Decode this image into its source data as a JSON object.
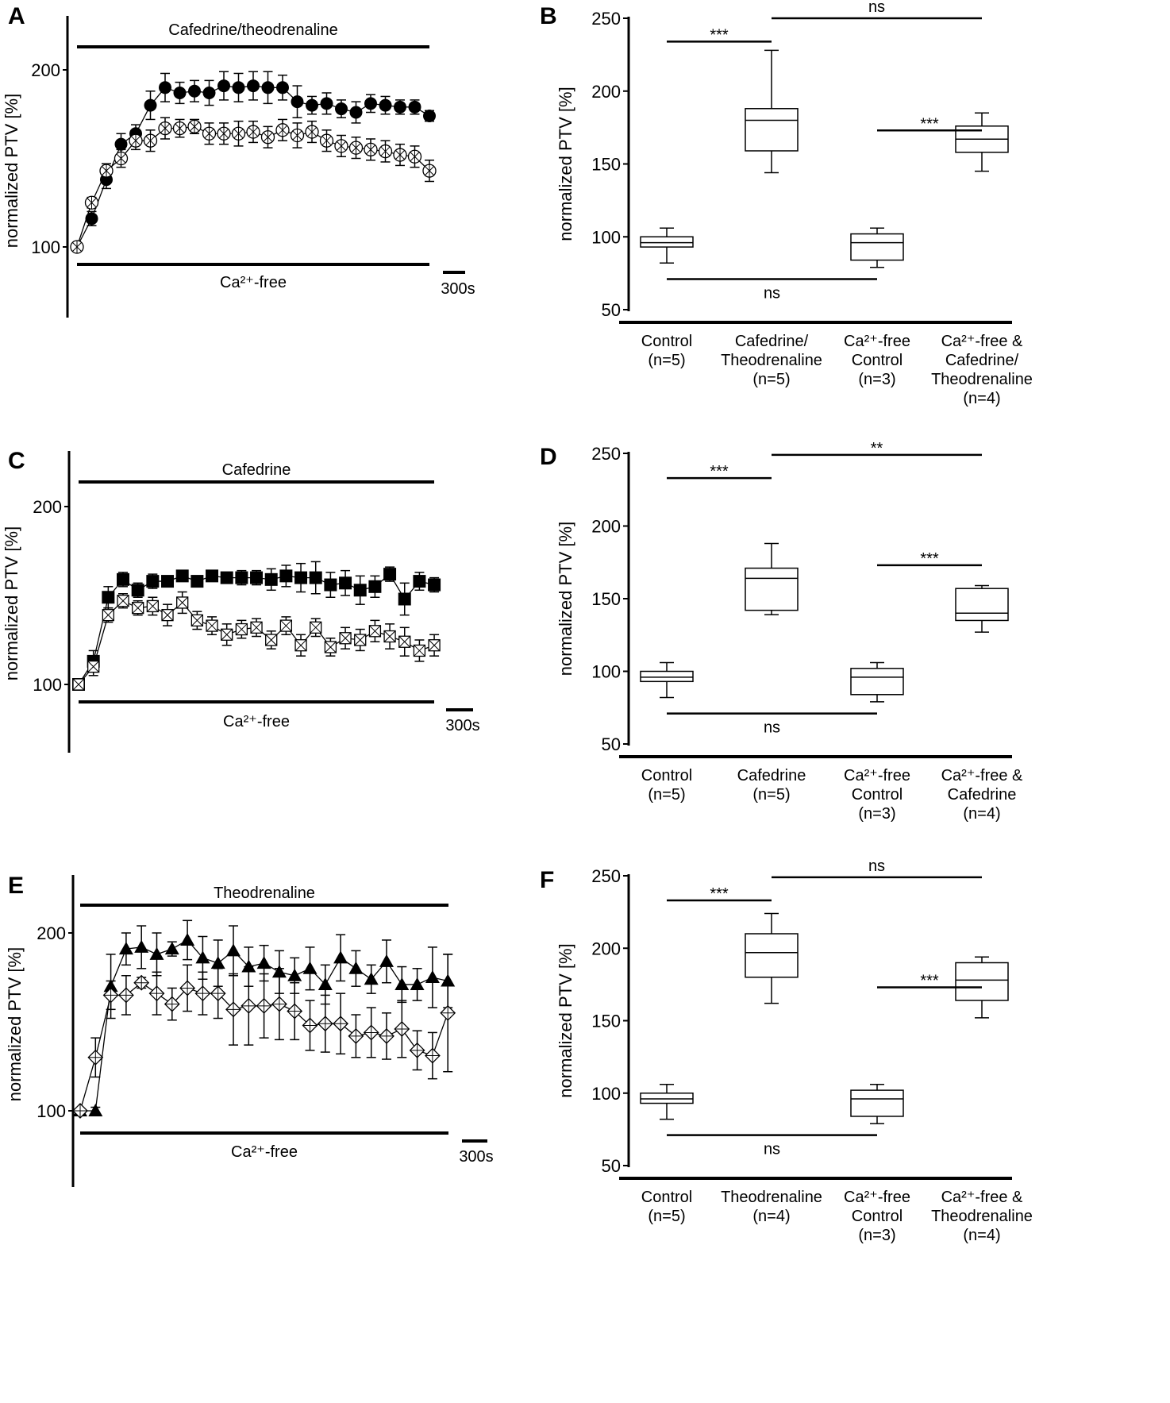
{
  "chart_data": [
    {
      "panel": "A",
      "type": "line",
      "ylabel": "normalized PTV [%]",
      "yticks": [
        100,
        200
      ],
      "top_bar_label": "Cafedrine/theodrenaline",
      "bottom_bar_label": "Ca²⁺-free",
      "scale_label": "300s",
      "series": [
        {
          "marker": "filled-circle",
          "values": [
            100,
            116,
            138,
            158,
            164,
            180,
            190,
            187,
            188,
            187,
            191,
            190,
            191,
            190,
            190,
            182,
            180,
            181,
            178,
            176,
            181,
            180,
            179,
            179,
            174
          ],
          "err": [
            0,
            4,
            5,
            6,
            5,
            8,
            8,
            6,
            6,
            7,
            8,
            8,
            8,
            9,
            7,
            9,
            5,
            6,
            5,
            6,
            5,
            5,
            4,
            4,
            3
          ]
        },
        {
          "marker": "open-circle-cross",
          "values": [
            100,
            125,
            143,
            150,
            160,
            160,
            167,
            167,
            168,
            164,
            164,
            164,
            165,
            162,
            166,
            163,
            165,
            160,
            157,
            156,
            155,
            154,
            152,
            151,
            143
          ],
          "err": [
            0,
            3,
            4,
            5,
            5,
            6,
            6,
            5,
            4,
            6,
            6,
            7,
            6,
            6,
            6,
            7,
            6,
            6,
            6,
            6,
            6,
            6,
            6,
            6,
            6
          ]
        }
      ]
    },
    {
      "panel": "B",
      "type": "box",
      "ylabel": "normalized PTV [%]",
      "yticks": [
        50,
        100,
        150,
        200,
        250
      ],
      "ylim": [
        50,
        250
      ],
      "categories": [
        [
          "Control",
          "(n=5)"
        ],
        [
          "Cafedrine/",
          "Theodrenaline",
          "(n=5)"
        ],
        [
          "Ca²⁺-free",
          "Control",
          "(n=3)"
        ],
        [
          "Ca²⁺-free &",
          "Cafedrine/",
          "Theodrenaline",
          "(n=4)"
        ]
      ],
      "boxes": [
        {
          "min": 82,
          "q1": 93,
          "median": 96,
          "q3": 100,
          "max": 106
        },
        {
          "min": 144,
          "q1": 159,
          "median": 180,
          "q3": 188,
          "max": 228
        },
        {
          "min": 79,
          "q1": 84,
          "median": 96,
          "q3": 102,
          "max": 106
        },
        {
          "min": 145,
          "q1": 158,
          "median": 167,
          "q3": 176,
          "max": 185
        }
      ],
      "significance": [
        {
          "groups": [
            1,
            2
          ],
          "label": "***"
        },
        {
          "groups": [
            2,
            4
          ],
          "label": "ns"
        },
        {
          "groups": [
            3,
            4
          ],
          "label": "***"
        },
        {
          "groups": [
            1,
            3
          ],
          "label": "ns"
        }
      ]
    },
    {
      "panel": "C",
      "type": "line",
      "ylabel": "normalized PTV [%]",
      "yticks": [
        100,
        200
      ],
      "top_bar_label": "Cafedrine",
      "bottom_bar_label": "Ca²⁺-free",
      "scale_label": "300s",
      "series": [
        {
          "marker": "filled-square",
          "values": [
            100,
            113,
            149,
            159,
            153,
            158,
            158,
            161,
            158,
            161,
            160,
            160,
            160,
            159,
            161,
            160,
            160,
            156,
            157,
            153,
            155,
            162,
            148,
            158,
            156
          ],
          "err": [
            0,
            6,
            6,
            4,
            4,
            4,
            3,
            3,
            3,
            3,
            3,
            4,
            4,
            6,
            6,
            8,
            9,
            7,
            7,
            8,
            6,
            4,
            9,
            5,
            4
          ]
        },
        {
          "marker": "open-square-cross",
          "values": [
            100,
            110,
            139,
            147,
            143,
            144,
            139,
            146,
            136,
            133,
            128,
            131,
            132,
            125,
            133,
            122,
            132,
            121,
            126,
            125,
            130,
            127,
            124,
            119,
            122
          ],
          "err": [
            0,
            5,
            4,
            4,
            4,
            5,
            6,
            6,
            5,
            5,
            6,
            5,
            5,
            5,
            5,
            6,
            5,
            5,
            6,
            6,
            6,
            7,
            8,
            6,
            6
          ]
        }
      ]
    },
    {
      "panel": "D",
      "type": "box",
      "ylabel": "normalized PTV [%]",
      "yticks": [
        50,
        100,
        150,
        200,
        250
      ],
      "ylim": [
        50,
        250
      ],
      "categories": [
        [
          "Control",
          "(n=5)"
        ],
        [
          "Cafedrine",
          "(n=5)"
        ],
        [
          "Ca²⁺-free",
          "Control",
          "(n=3)"
        ],
        [
          "Ca²⁺-free &",
          "Cafedrine",
          "(n=4)"
        ]
      ],
      "boxes": [
        {
          "min": 82,
          "q1": 93,
          "median": 96,
          "q3": 100,
          "max": 106
        },
        {
          "min": 139,
          "q1": 142,
          "median": 164,
          "q3": 171,
          "max": 188
        },
        {
          "min": 79,
          "q1": 84,
          "median": 96,
          "q3": 102,
          "max": 106
        },
        {
          "min": 127,
          "q1": 135,
          "median": 140,
          "q3": 157,
          "max": 159
        }
      ],
      "significance": [
        {
          "groups": [
            1,
            2
          ],
          "label": "***"
        },
        {
          "groups": [
            2,
            4
          ],
          "label": "**"
        },
        {
          "groups": [
            3,
            4
          ],
          "label": "***"
        },
        {
          "groups": [
            1,
            3
          ],
          "label": "ns"
        }
      ]
    },
    {
      "panel": "E",
      "type": "line",
      "ylabel": "normalized PTV [%]",
      "yticks": [
        100,
        200
      ],
      "top_bar_label": "Theodrenaline",
      "bottom_bar_label": "Ca²⁺-free",
      "scale_label": "300s",
      "series": [
        {
          "marker": "filled-triangle",
          "values": [
            100,
            100,
            170,
            191,
            192,
            188,
            191,
            196,
            186,
            183,
            190,
            181,
            183,
            178,
            176,
            180,
            171,
            186,
            180,
            174,
            184,
            171,
            171,
            175,
            173
          ],
          "err": [
            0,
            2,
            18,
            9,
            12,
            12,
            4,
            11,
            12,
            13,
            14,
            11,
            10,
            12,
            10,
            12,
            11,
            13,
            10,
            8,
            12,
            10,
            9,
            17,
            15
          ]
        },
        {
          "marker": "open-diamond-cross",
          "values": [
            100,
            130,
            165,
            165,
            172,
            166,
            160,
            169,
            166,
            166,
            157,
            159,
            159,
            160,
            156,
            148,
            149,
            149,
            142,
            144,
            142,
            146,
            134,
            131,
            155
          ],
          "err": [
            0,
            11,
            8,
            11,
            3,
            12,
            9,
            13,
            12,
            14,
            20,
            22,
            18,
            20,
            16,
            14,
            16,
            17,
            12,
            14,
            13,
            16,
            11,
            13,
            33
          ]
        }
      ]
    },
    {
      "panel": "F",
      "type": "box",
      "ylabel": "normalized PTV [%]",
      "yticks": [
        50,
        100,
        150,
        200,
        250
      ],
      "ylim": [
        50,
        250
      ],
      "categories": [
        [
          "Control",
          "(n=5)"
        ],
        [
          "Theodrenaline",
          "(n=4)"
        ],
        [
          "Ca²⁺-free",
          "Control",
          "(n=3)"
        ],
        [
          "Ca²⁺-free &",
          "Theodrenaline",
          "(n=4)"
        ]
      ],
      "boxes": [
        {
          "min": 82,
          "q1": 93,
          "median": 96,
          "q3": 100,
          "max": 106
        },
        {
          "min": 162,
          "q1": 180,
          "median": 197,
          "q3": 210,
          "max": 224
        },
        {
          "min": 79,
          "q1": 84,
          "median": 96,
          "q3": 102,
          "max": 106
        },
        {
          "min": 152,
          "q1": 164,
          "median": 178,
          "q3": 190,
          "max": 194
        }
      ],
      "significance": [
        {
          "groups": [
            1,
            2
          ],
          "label": "***"
        },
        {
          "groups": [
            2,
            4
          ],
          "label": "ns"
        },
        {
          "groups": [
            3,
            4
          ],
          "label": "***"
        },
        {
          "groups": [
            1,
            3
          ],
          "label": "ns"
        }
      ]
    }
  ]
}
